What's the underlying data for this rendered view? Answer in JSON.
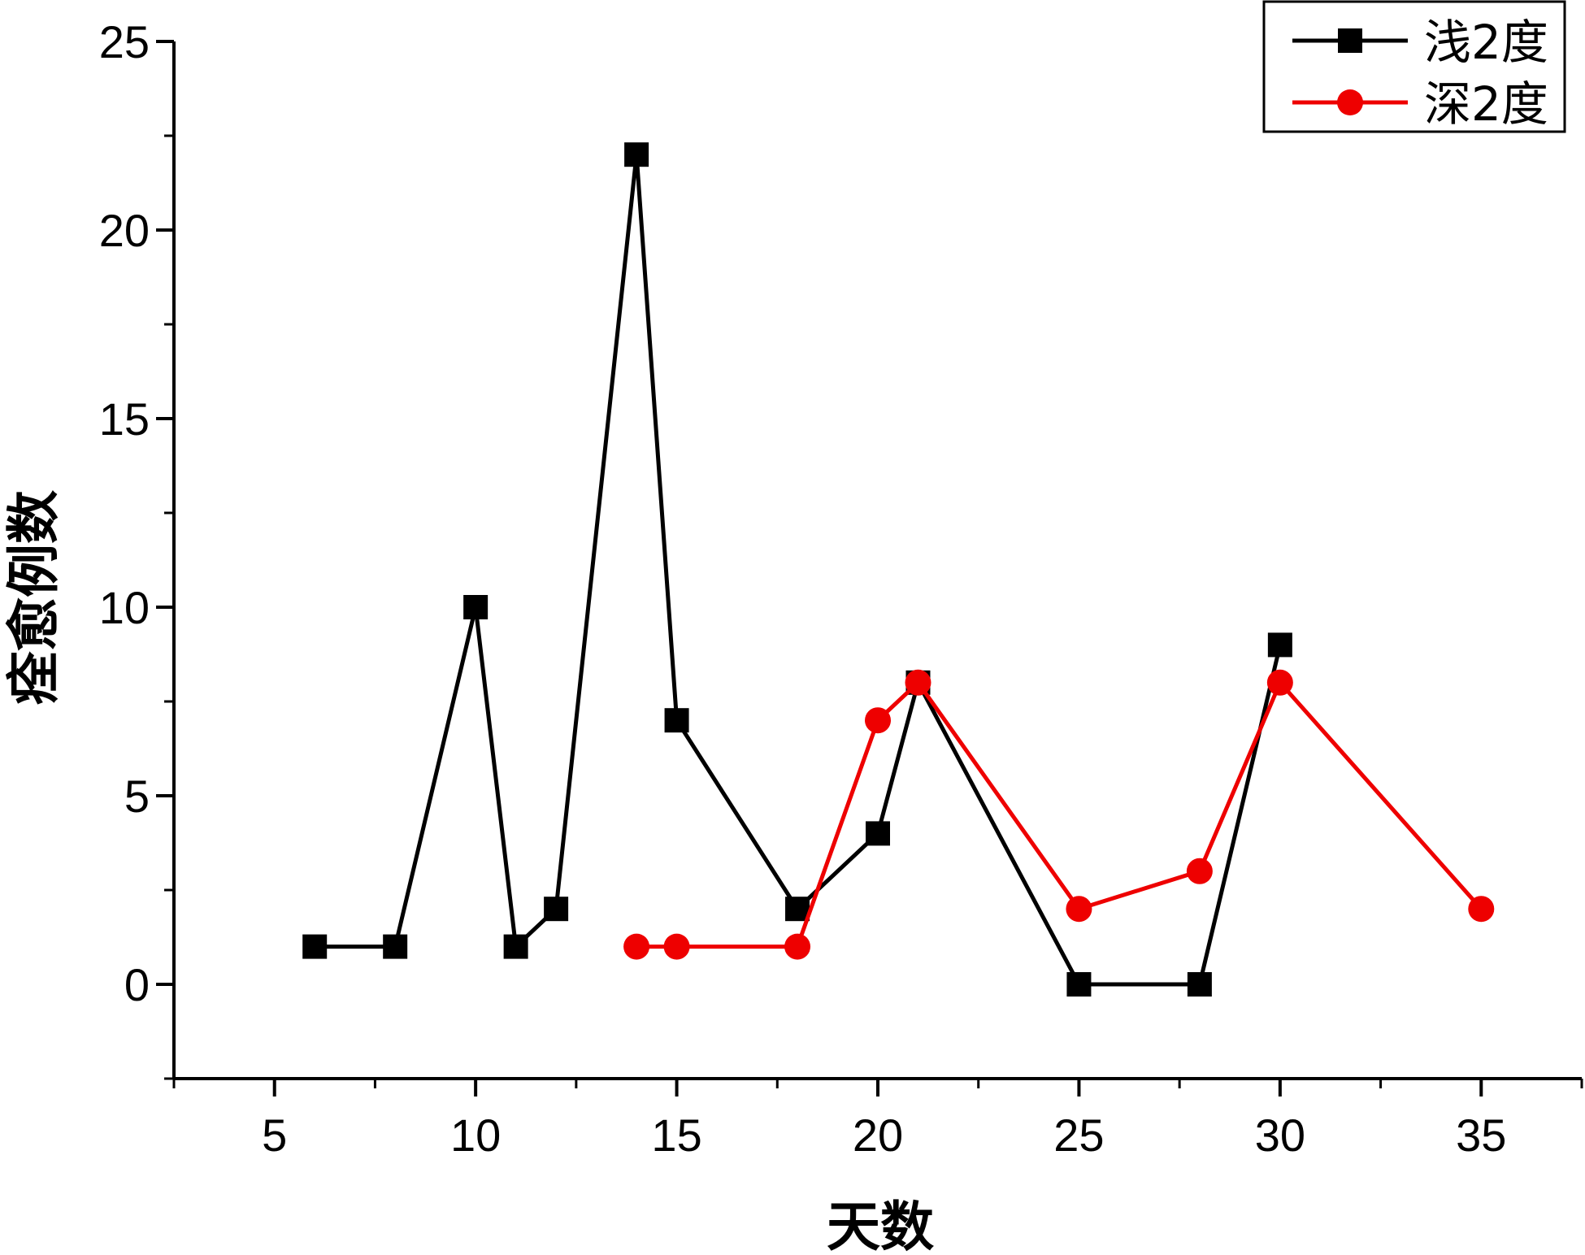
{
  "chart_data": {
    "type": "line",
    "title": "",
    "xlabel": "天数",
    "ylabel": "痊愈例数",
    "xlim": [
      2.5,
      37.5
    ],
    "ylim": [
      -2.5,
      25
    ],
    "x_major_ticks": [
      5,
      10,
      15,
      20,
      25,
      30,
      35
    ],
    "x_minor_ticks": [
      2.5,
      7.5,
      12.5,
      17.5,
      22.5,
      27.5,
      32.5,
      37.5
    ],
    "y_major_ticks": [
      0,
      5,
      10,
      15,
      20,
      25
    ],
    "y_minor_ticks": [
      -2.5,
      2.5,
      7.5,
      12.5,
      17.5,
      22.5
    ],
    "grid": false,
    "legend_position": "top-right",
    "series": [
      {
        "name": "浅2度",
        "color": "#000000",
        "marker": "square",
        "x": [
          6,
          8,
          10,
          11,
          12,
          14,
          15,
          18,
          20,
          21,
          25,
          28,
          30
        ],
        "y": [
          1,
          1,
          10,
          1,
          2,
          22,
          7,
          2,
          4,
          8,
          0,
          0,
          9
        ]
      },
      {
        "name": "深2度",
        "color": "#ee0000",
        "marker": "circle",
        "x": [
          14,
          15,
          18,
          20,
          21,
          25,
          28,
          30,
          35
        ],
        "y": [
          1,
          1,
          1,
          7,
          8,
          2,
          3,
          8,
          2
        ]
      }
    ]
  }
}
